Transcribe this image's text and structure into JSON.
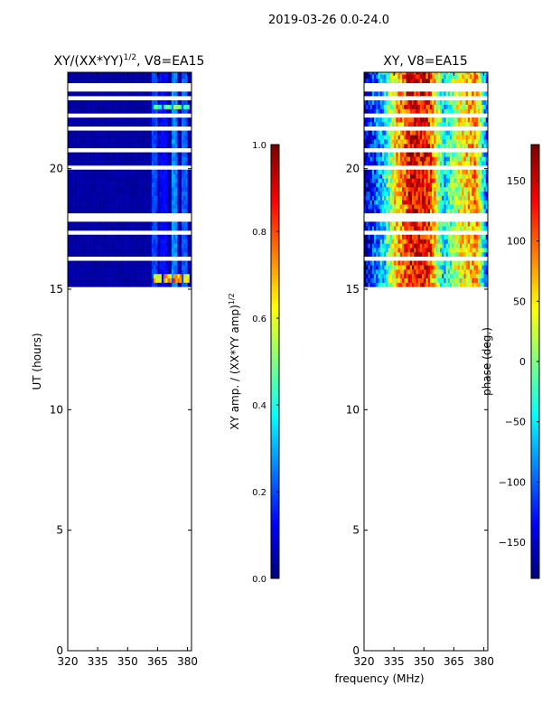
{
  "figure": {
    "suptitle": "2019-03-26 0.0-24.0",
    "shared_xlabel": "frequency (MHz)"
  },
  "colormap": [
    "#00007f",
    "#0000ff",
    "#007fff",
    "#00ffff",
    "#7fff7f",
    "#ffff00",
    "#ff7f00",
    "#ff0000",
    "#7f0000"
  ],
  "chart_data": [
    {
      "type": "heatmap",
      "id": "amp",
      "title": "XY/(XX*YY)¹ᐟ², V8=EA15",
      "title_main": "XY/(XX*YY)",
      "title_sup": "1/2",
      "title_tail": ", V8=EA15",
      "xlabel": "",
      "ylabel": "UT (hours)",
      "xlim": [
        320,
        382
      ],
      "ylim": [
        0,
        24
      ],
      "xticks": [
        320,
        335,
        350,
        365,
        380
      ],
      "yticks": [
        0,
        5,
        10,
        15,
        20
      ],
      "data_ut_range": [
        15.1,
        24.0
      ],
      "gaps_ut": [
        [
          15.8,
          15.9
        ],
        [
          16.1,
          16.3
        ],
        [
          17.3,
          17.5
        ],
        [
          17.8,
          18.2
        ],
        [
          18.8,
          18.9
        ],
        [
          19.05,
          19.1
        ],
        [
          20.0,
          20.1
        ],
        [
          20.3,
          20.4
        ],
        [
          20.75,
          20.85
        ],
        [
          21.6,
          21.7
        ],
        [
          22.1,
          22.3
        ],
        [
          22.85,
          22.95
        ],
        [
          23.2,
          23.3
        ],
        [
          23.45,
          23.6
        ]
      ],
      "colorbar": {
        "label_main": "XY amp. / (XX*YY amp)",
        "label_sup": "1/2",
        "min": 0.0,
        "max": 1.0,
        "ticks": [
          "0.0",
          "0.2",
          "0.4",
          "0.6",
          "0.8",
          "1.0"
        ],
        "tick_values": [
          0,
          0.2,
          0.4,
          0.6,
          0.8,
          1.0
        ]
      },
      "background_value": 0.02,
      "features": [
        {
          "freq": 363.5,
          "ut": [
            15.1,
            24.0
          ],
          "value": 0.22
        },
        {
          "freq": 368.0,
          "ut": [
            15.1,
            24.0
          ],
          "value": 0.15
        },
        {
          "freq": 373.5,
          "ut": [
            15.1,
            24.0
          ],
          "value": 0.3
        },
        {
          "freq": 378.5,
          "ut": [
            15.1,
            24.0
          ],
          "value": 0.25
        },
        {
          "freq": 365.0,
          "ut": [
            15.2,
            15.5
          ],
          "value": 0.75
        },
        {
          "freq": 370.0,
          "ut": [
            15.2,
            15.5
          ],
          "value": 0.8
        },
        {
          "freq": 375.0,
          "ut": [
            15.2,
            15.5
          ],
          "value": 0.85
        },
        {
          "freq": 379.5,
          "ut": [
            15.2,
            15.5
          ],
          "value": 0.8
        },
        {
          "freq": 365.0,
          "ut": [
            22.4,
            22.6
          ],
          "value": 0.5
        },
        {
          "freq": 370.0,
          "ut": [
            22.4,
            22.6
          ],
          "value": 0.55
        },
        {
          "freq": 375.0,
          "ut": [
            22.4,
            22.6
          ],
          "value": 0.6
        },
        {
          "freq": 379.5,
          "ut": [
            22.4,
            22.6
          ],
          "value": 0.55
        }
      ]
    },
    {
      "type": "heatmap",
      "id": "phase",
      "title": "XY, V8=EA15",
      "xlabel": "frequency (MHz)",
      "ylabel": "",
      "xlim": [
        320,
        382
      ],
      "ylim": [
        0,
        24
      ],
      "xticks": [
        320,
        335,
        350,
        365,
        380
      ],
      "yticks": [
        0,
        5,
        10,
        15,
        20
      ],
      "data_ut_range": [
        15.1,
        24.0
      ],
      "gaps_ut": [
        [
          15.8,
          15.9
        ],
        [
          16.1,
          16.3
        ],
        [
          17.3,
          17.5
        ],
        [
          17.8,
          18.2
        ],
        [
          18.8,
          18.9
        ],
        [
          19.05,
          19.1
        ],
        [
          20.0,
          20.1
        ],
        [
          20.3,
          20.4
        ],
        [
          20.75,
          20.85
        ],
        [
          21.6,
          21.7
        ],
        [
          22.1,
          22.3
        ],
        [
          22.85,
          22.95
        ],
        [
          23.2,
          23.3
        ],
        [
          23.45,
          23.6
        ]
      ],
      "colorbar": {
        "label": "phase (deg.)",
        "min": -180,
        "max": 180,
        "ticks": [
          "−150",
          "−100",
          "−50",
          "0",
          "50",
          "100",
          "150"
        ],
        "tick_values": [
          -150,
          -100,
          -50,
          0,
          50,
          100,
          150
        ]
      },
      "phase_profile": [
        {
          "freq": 320,
          "deg": -170
        },
        {
          "freq": 330,
          "deg": -60
        },
        {
          "freq": 336,
          "deg": 60
        },
        {
          "freq": 345,
          "deg": 150
        },
        {
          "freq": 353,
          "deg": 120
        },
        {
          "freq": 360,
          "deg": -60
        },
        {
          "freq": 368,
          "deg": 40
        },
        {
          "freq": 376,
          "deg": 80
        },
        {
          "freq": 382,
          "deg": -120
        }
      ]
    }
  ]
}
